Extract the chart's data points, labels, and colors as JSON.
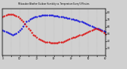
{
  "title": "Milwaukee Weather Outdoor Humidity vs. Temperature Every 5 Minutes",
  "bg_color": "#d0d0d0",
  "plot_bg_color": "#d0d0d0",
  "blue_y": [
    55,
    54,
    53,
    52,
    51,
    50,
    49,
    50,
    51,
    53,
    55,
    58,
    61,
    64,
    67,
    69,
    71,
    72,
    73,
    74,
    74,
    75,
    75,
    76,
    76,
    76,
    76,
    76,
    76,
    76,
    75,
    75,
    75,
    74,
    74,
    74,
    73,
    73,
    72,
    72,
    71,
    71,
    70,
    70,
    69,
    68,
    67,
    66,
    65,
    64,
    63,
    62,
    61,
    60,
    59,
    58,
    57,
    56,
    55,
    54,
    53
  ],
  "red_y": [
    74,
    75,
    76,
    77,
    78,
    78,
    77,
    76,
    75,
    74,
    72,
    70,
    67,
    64,
    61,
    58,
    55,
    52,
    49,
    47,
    45,
    43,
    42,
    41,
    40,
    39,
    38,
    38,
    37,
    37,
    37,
    37,
    37,
    38,
    38,
    39,
    40,
    41,
    42,
    43,
    44,
    45,
    45,
    46,
    47,
    48,
    49,
    50,
    51,
    52,
    53,
    54,
    55,
    56,
    57,
    57,
    56,
    55,
    54,
    52,
    50
  ],
  "n": 61,
  "y_min": 20,
  "y_max": 85,
  "y_right_ticks": [
    80,
    70,
    60,
    50,
    40,
    30
  ],
  "y_right_labels": [
    "80",
    "70",
    "60",
    "50",
    "40",
    "30"
  ],
  "blue_color": "#0000dd",
  "red_color": "#dd0000",
  "markersize": 1.2,
  "grid_color": "#aaaaaa",
  "grid_linestyle": ":"
}
